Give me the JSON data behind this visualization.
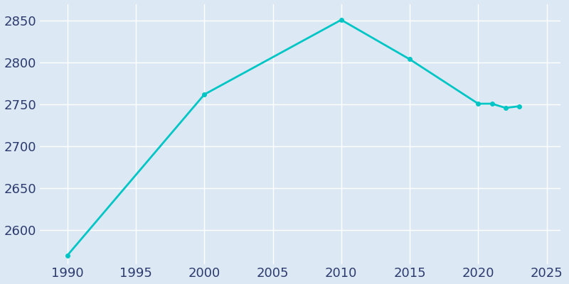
{
  "years": [
    1990,
    2000,
    2010,
    2015,
    2020,
    2021,
    2022,
    2023
  ],
  "population": [
    2570,
    2762,
    2851,
    2804,
    2751,
    2751,
    2746,
    2748
  ],
  "line_color": "#00C5C5",
  "marker": "o",
  "marker_size": 4,
  "line_width": 2,
  "bg_color": "#dce9f5",
  "grid_color": "#ffffff",
  "xlim": [
    1988,
    2026
  ],
  "ylim": [
    2560,
    2870
  ],
  "yticks": [
    2600,
    2650,
    2700,
    2750,
    2800,
    2850
  ],
  "xticks": [
    1990,
    1995,
    2000,
    2005,
    2010,
    2015,
    2020,
    2025
  ],
  "tick_color": "#2d3a6e",
  "tick_fontsize": 13
}
